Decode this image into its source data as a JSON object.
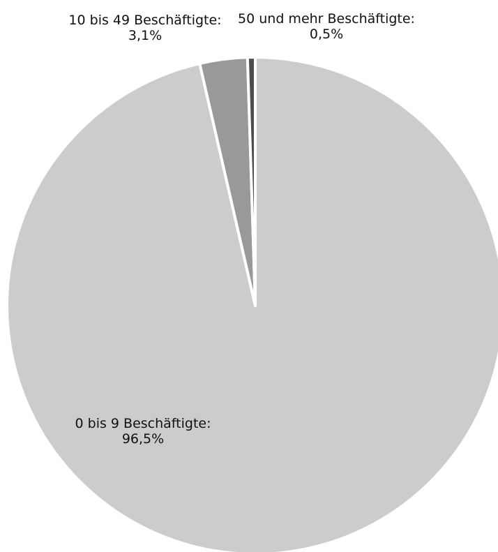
{
  "chart_data": {
    "type": "pie",
    "title": "",
    "slices": [
      {
        "label": "0 bis 9 Beschäftigte:",
        "value_text": "96,5%",
        "value": 96.5,
        "color": "#cccccc"
      },
      {
        "label": "10 bis 49 Beschäftigte:",
        "value_text": "3,1%",
        "value": 3.1,
        "color": "#999999"
      },
      {
        "label": "50 und mehr Beschäftigte:",
        "value_text": "0,5%",
        "value": 0.5,
        "color": "#4d4d4d"
      }
    ],
    "start_angle": "12 o'clock",
    "direction": "clockwise",
    "legend": "none",
    "slice_border_color": "#ffffff"
  }
}
